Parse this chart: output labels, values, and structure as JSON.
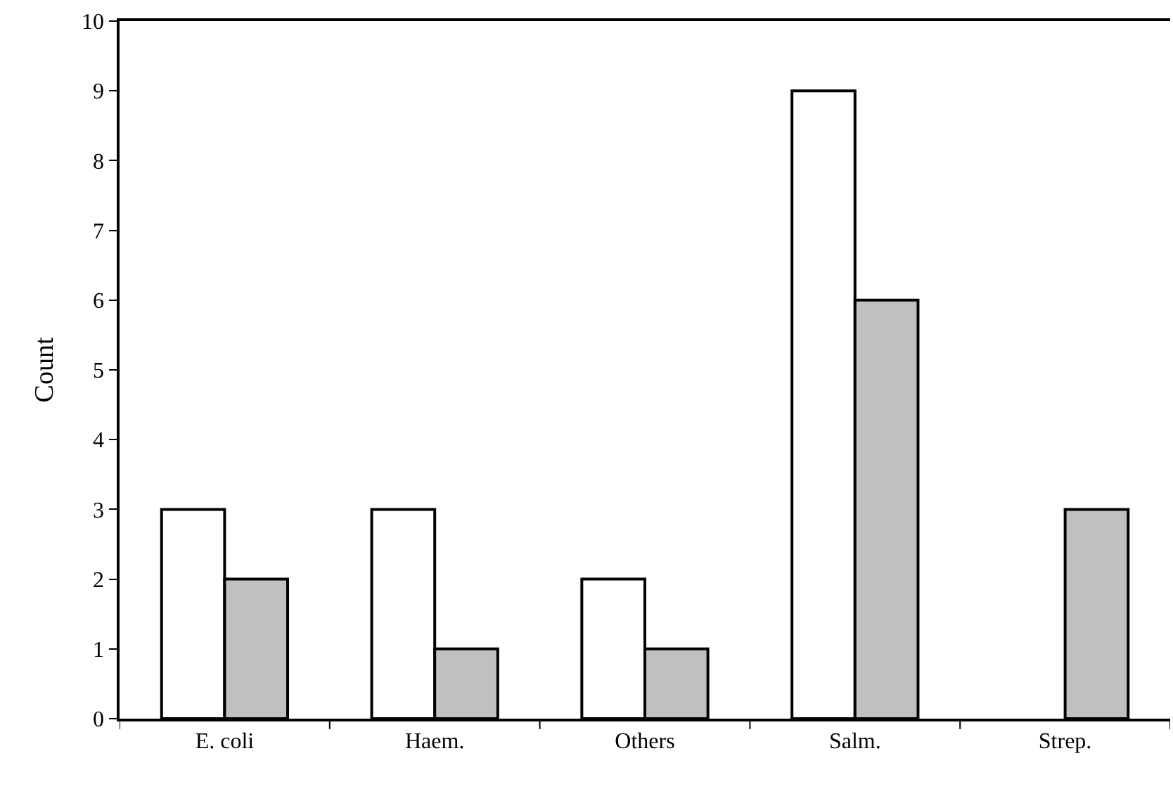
{
  "chart_data": {
    "type": "bar",
    "ylabel": "Count",
    "categories": [
      "E. coli",
      "Haem.",
      "Others",
      "Salm.",
      "Strep."
    ],
    "series": [
      {
        "color": "#ffffff",
        "values": [
          3,
          3,
          2,
          9,
          null
        ]
      },
      {
        "color": "#c0c0c0",
        "values": [
          2,
          1,
          1,
          6,
          3
        ]
      }
    ],
    "ylim": [
      0,
      10
    ],
    "yticks": [
      0,
      1,
      2,
      3,
      4,
      5,
      6,
      7,
      8,
      9,
      10
    ]
  }
}
